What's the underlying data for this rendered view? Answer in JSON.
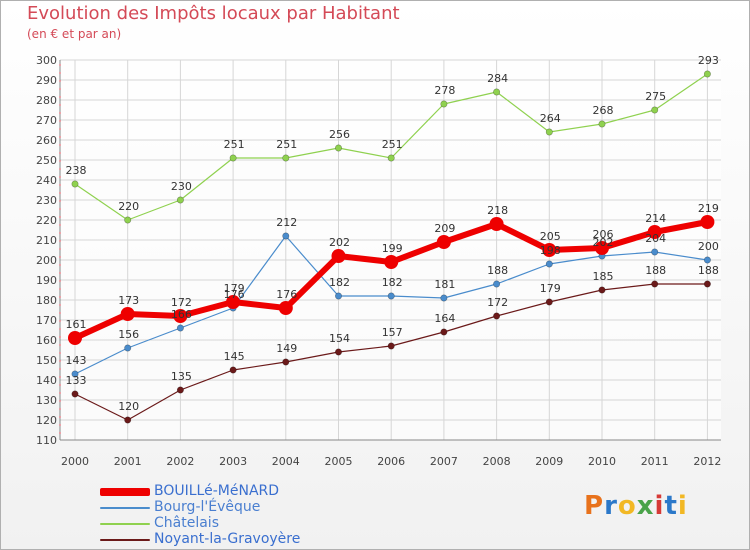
{
  "header": {
    "title": "Evolution des Impôts locaux par Habitant",
    "subtitle": "(en € et par an)"
  },
  "logo": {
    "text": "Proxiti",
    "letters": [
      "P",
      "r",
      "o",
      "x",
      "i",
      "t",
      "i"
    ],
    "colors": [
      "#e8721c",
      "#2b78c9",
      "#f2b824",
      "#4aa34a",
      "#d63a37",
      "#2b78c9",
      "#f2b824"
    ]
  },
  "chart_data": {
    "type": "line",
    "title": "Evolution des Impôts locaux par Habitant",
    "subtitle": "(en € et par an)",
    "xlabel": "",
    "ylabel": "",
    "x": [
      "2000",
      "2001",
      "2002",
      "2003",
      "2004",
      "2005",
      "2006",
      "2007",
      "2008",
      "2009",
      "2010",
      "2011",
      "2012"
    ],
    "ylim": [
      110,
      300
    ],
    "ytick_step": 10,
    "grid": true,
    "legend_position": "bottom-left",
    "series": [
      {
        "name": "BOUILLé-MéNARD",
        "color": "#ee0000",
        "width": 6,
        "marker": 7,
        "values": [
          161,
          173,
          172,
          179,
          176,
          202,
          199,
          209,
          218,
          205,
          206,
          214,
          219
        ]
      },
      {
        "name": "Bourg-l'Évêque",
        "color": "#4a8ccc",
        "width": 1.2,
        "marker": 3.2,
        "values": [
          143,
          156,
          166,
          176,
          212,
          182,
          182,
          181,
          188,
          198,
          202,
          204,
          200
        ]
      },
      {
        "name": "Châtelais",
        "color": "#8fd14f",
        "width": 1.2,
        "marker": 3.2,
        "values": [
          238,
          220,
          230,
          251,
          251,
          256,
          251,
          278,
          284,
          264,
          268,
          275,
          293
        ]
      },
      {
        "name": "Noyant-la-Gravoyère",
        "color": "#6b1a1a",
        "width": 1.2,
        "marker": 3.2,
        "values": [
          133,
          120,
          135,
          145,
          149,
          154,
          157,
          164,
          172,
          179,
          185,
          188,
          188
        ]
      }
    ]
  }
}
